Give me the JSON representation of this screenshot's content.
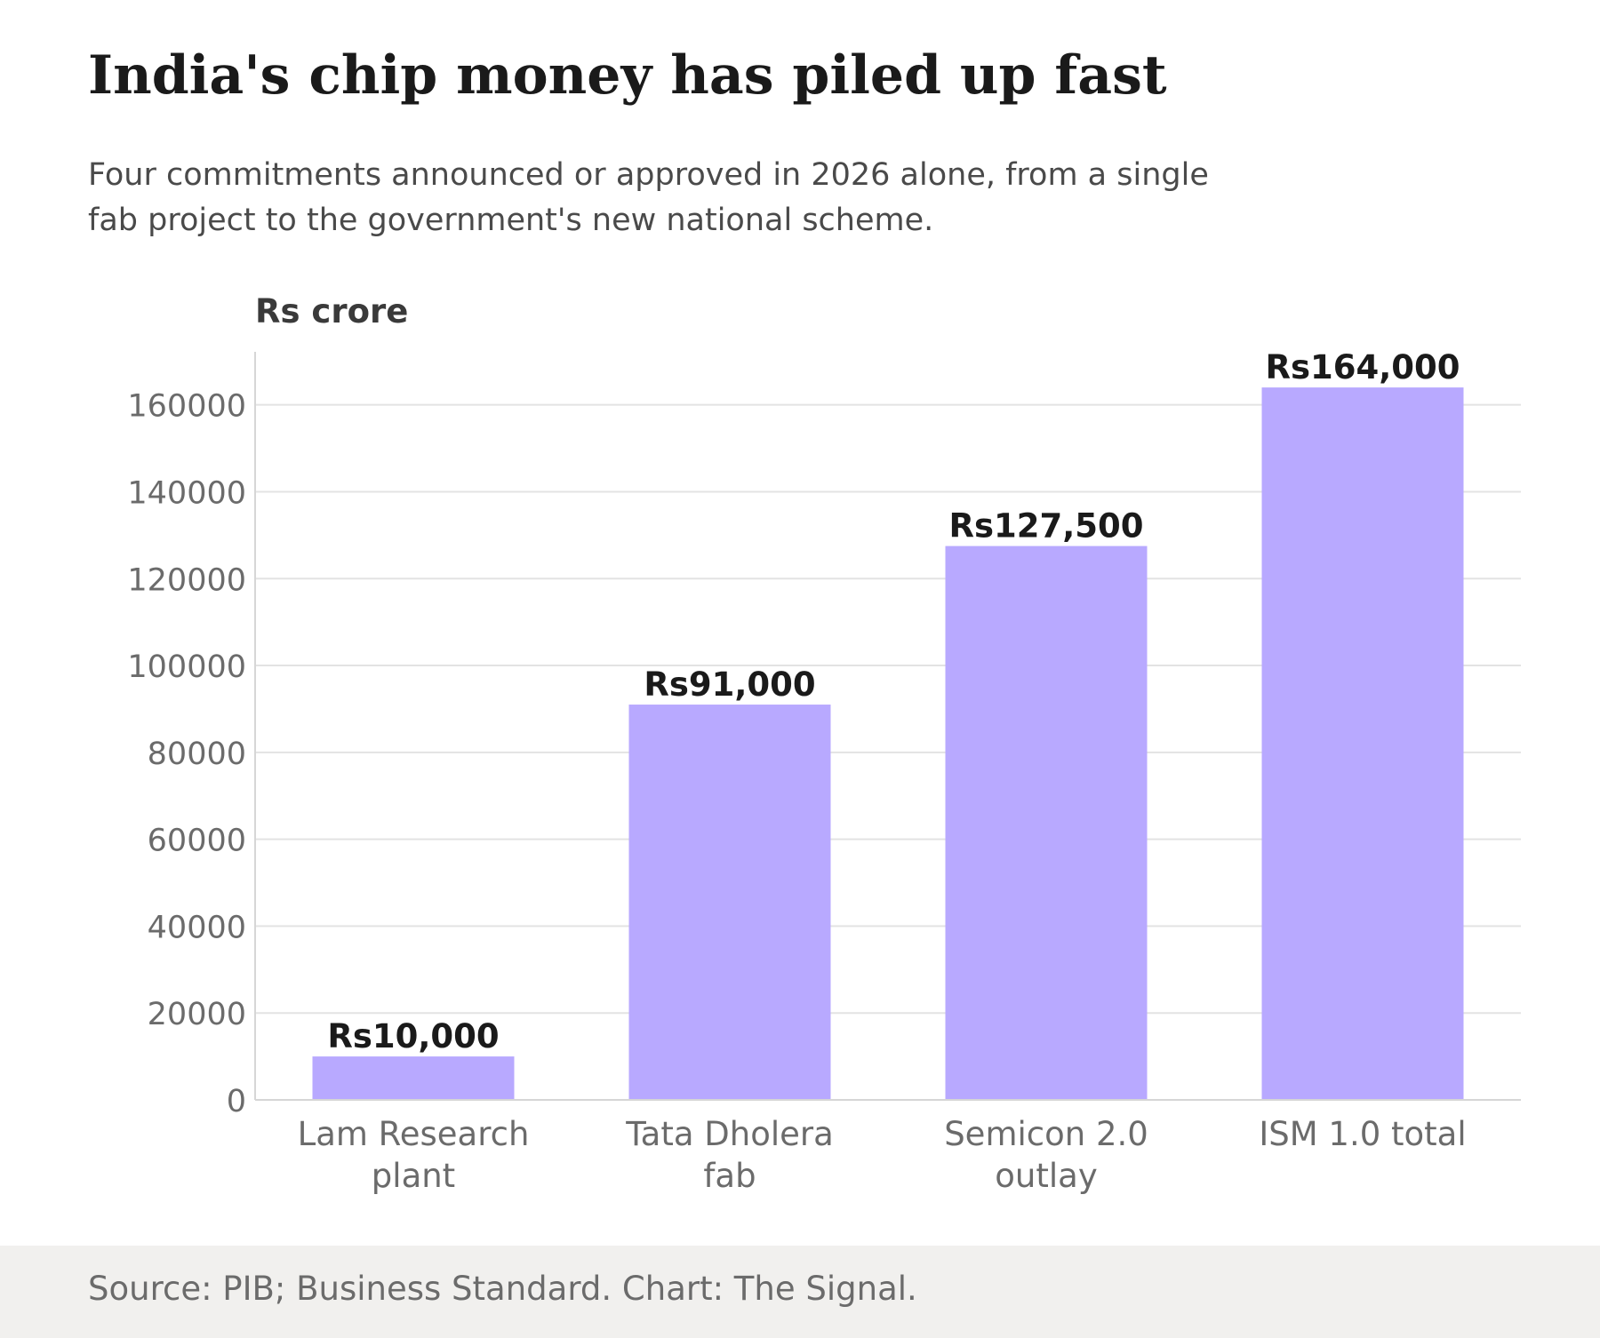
{
  "header": {
    "title": "India's chip money has piled up fast",
    "subtitle_lines": [
      "Four commitments announced or approved in 2026 alone, from a single",
      "fab project to the government's new national scheme."
    ]
  },
  "footer": {
    "source": "Source: PIB; Business Standard. Chart: The Signal."
  },
  "colors": {
    "bar": "#b8a9ff",
    "grid": "#e3e3e3",
    "axis": "#d6d6d6",
    "tick_text": "#6b6b6b",
    "value_label": "#1a1a1a",
    "unit_label": "#3a3a3a",
    "footer_bg": "#f1f0ee"
  },
  "chart_data": {
    "type": "bar",
    "unit_label": "Rs crore",
    "categories": [
      [
        "Lam Research",
        "plant"
      ],
      [
        "Tata Dholera",
        "fab"
      ],
      [
        "Semicon 2.0",
        "outlay"
      ],
      [
        "ISM 1.0 total"
      ]
    ],
    "values": [
      10000,
      91000,
      127500,
      164000
    ],
    "value_labels": [
      "Rs10,000",
      "Rs91,000",
      "Rs127,500",
      "Rs164,000"
    ],
    "ylim": [
      0,
      172000
    ],
    "yticks": [
      0,
      20000,
      40000,
      60000,
      80000,
      100000,
      120000,
      140000,
      160000
    ],
    "ytick_labels": [
      "0",
      "20000",
      "40000",
      "60000",
      "80000",
      "100000",
      "120000",
      "140000",
      "160000"
    ],
    "grid": true,
    "legend": "none"
  }
}
